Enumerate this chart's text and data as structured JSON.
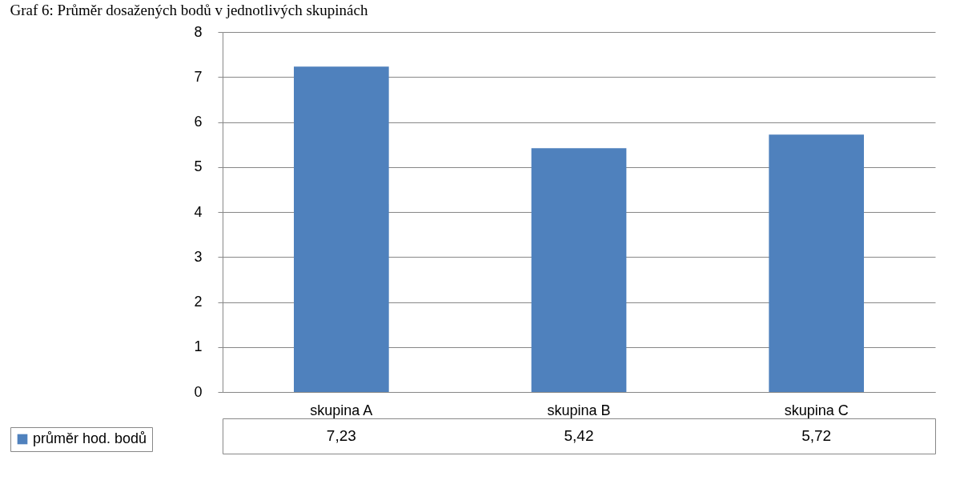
{
  "chart_data": {
    "type": "bar",
    "title": "Graf 6: Průměr dosažených bodů v jednotlivých skupinách",
    "categories": [
      "skupina A",
      "skupina B",
      "skupina C"
    ],
    "series": [
      {
        "name": "průměr hod. bodů",
        "color": "#4f81bd",
        "values": [
          7.23,
          5.42,
          5.72
        ],
        "value_labels": [
          "7,23",
          "5,42",
          "5,72"
        ]
      }
    ],
    "ylim": [
      0,
      8
    ],
    "yticks": [
      0,
      1,
      2,
      3,
      4,
      5,
      6,
      7,
      8
    ],
    "grid": "y",
    "legend": "bottom left"
  }
}
